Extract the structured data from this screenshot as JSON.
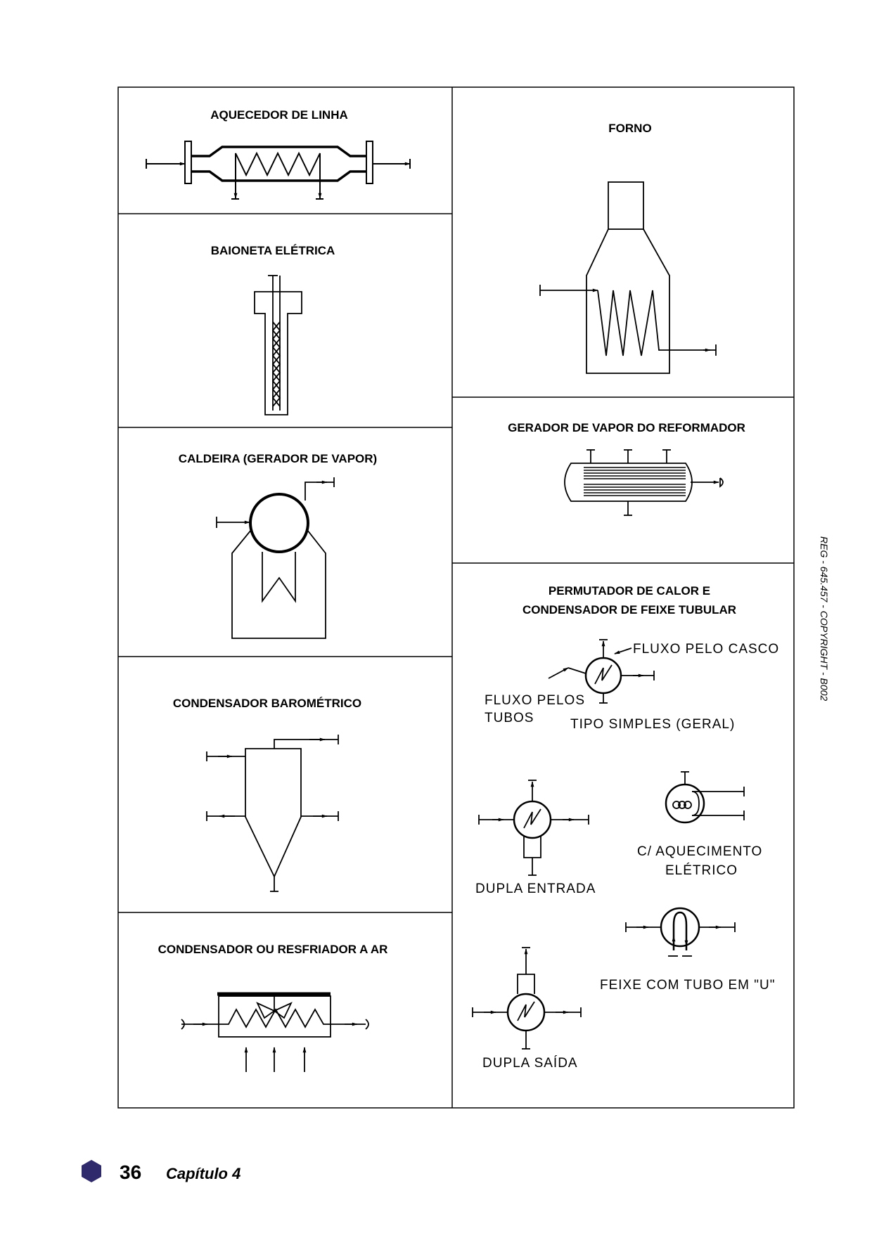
{
  "sections": {
    "aquecedor": {
      "title": "AQUECEDOR DE LINHA"
    },
    "forno": {
      "title": "FORNO"
    },
    "baioneta": {
      "title": "BAIONETA ELÉTRICA"
    },
    "gerador": {
      "title": "GERADOR DE VAPOR DO REFORMADOR"
    },
    "caldeira": {
      "title": "CALDEIRA (GERADOR DE VAPOR)"
    },
    "permutador": {
      "title_line1": "PERMUTADOR DE CALOR E",
      "title_line2": "CONDENSADOR DE FEIXE TUBULAR",
      "label_casco": "FLUXO PELO CASCO",
      "label_tubos_line1": "FLUXO PELOS",
      "label_tubos_line2": "TUBOS",
      "label_simples": "TIPO SIMPLES (GERAL)",
      "label_dupla_entrada": "DUPLA ENTRADA",
      "label_eletrico_line1": "C/ AQUECIMENTO",
      "label_eletrico_line2": "ELÉTRICO",
      "label_tubo_u": "FEIXE COM TUBO EM \"U\"",
      "label_dupla_saida": "DUPLA SAÍDA"
    },
    "barometrico": {
      "title": "CONDENSADOR BAROMÉTRICO"
    },
    "ar": {
      "title": "CONDENSADOR OU RESFRIADOR A AR"
    }
  },
  "footer": {
    "page_number": "36",
    "chapter": "Capítulo 4"
  },
  "side_note": "REG - 645.457 - COPYRIGHT - B002",
  "colors": {
    "hexagon": "#2f2a6b",
    "ink": "#000000"
  }
}
